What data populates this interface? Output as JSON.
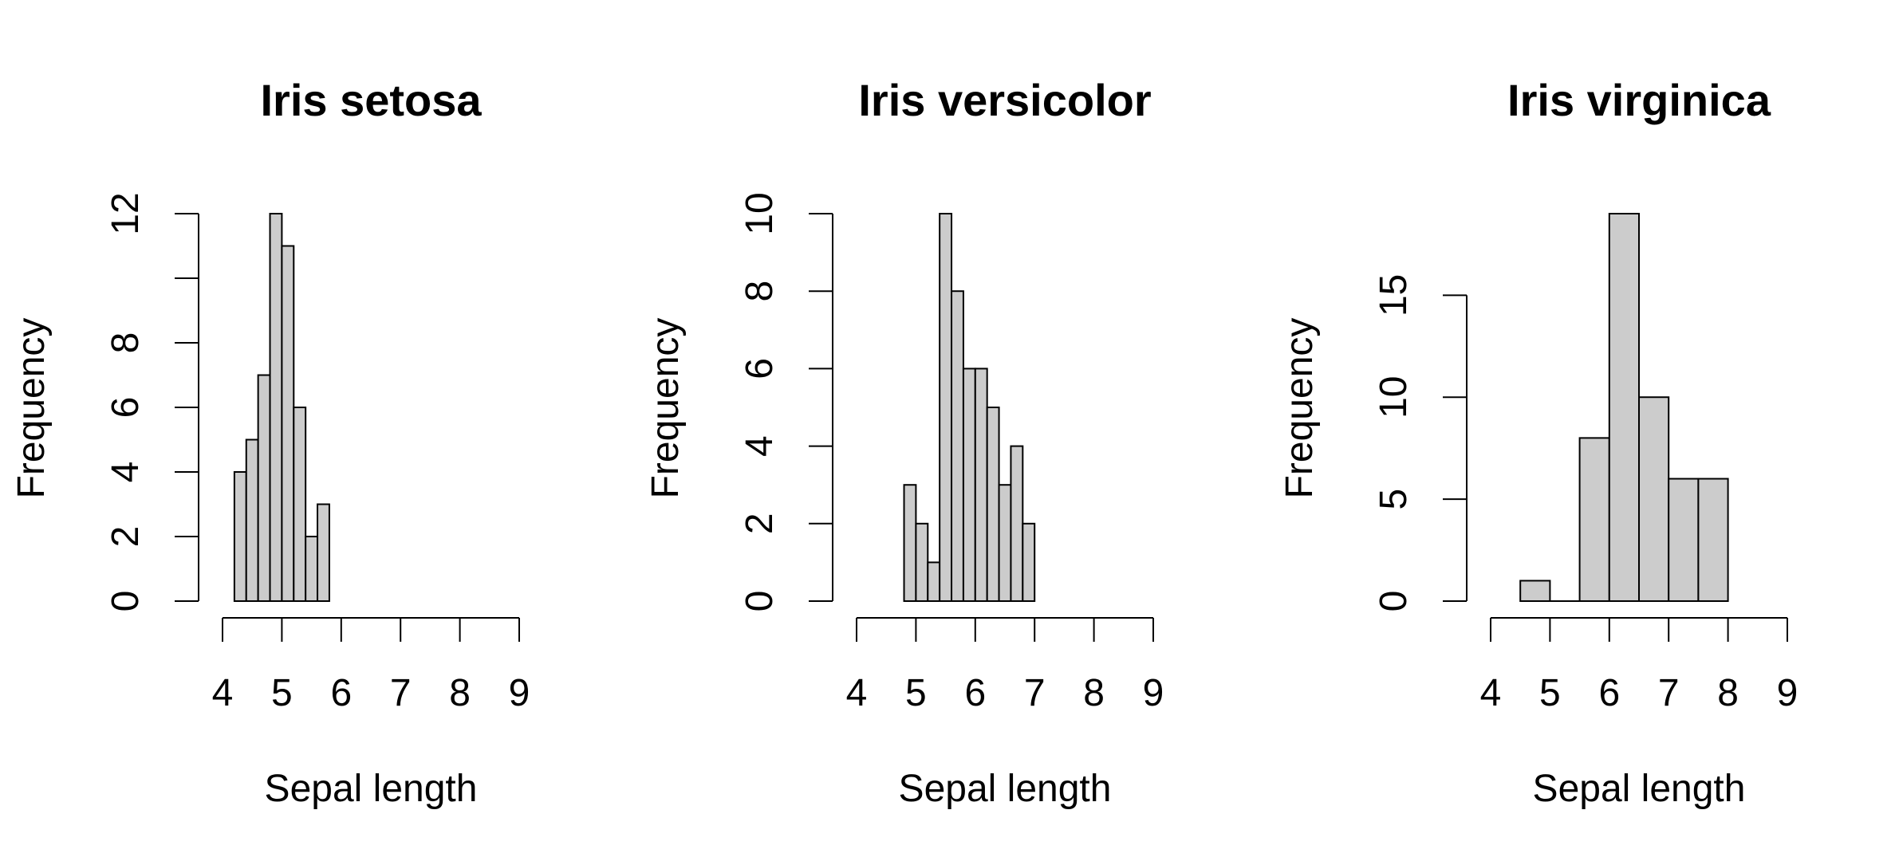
{
  "chart_data": [
    {
      "type": "bar",
      "title": "Iris setosa",
      "xlabel": "Sepal length",
      "ylabel": "Frequency",
      "bins": [
        {
          "from": 4.2,
          "to": 4.4,
          "count": 4
        },
        {
          "from": 4.4,
          "to": 4.6,
          "count": 5
        },
        {
          "from": 4.6,
          "to": 4.8,
          "count": 7
        },
        {
          "from": 4.8,
          "to": 5.0,
          "count": 12
        },
        {
          "from": 5.0,
          "to": 5.2,
          "count": 11
        },
        {
          "from": 5.2,
          "to": 5.4,
          "count": 6
        },
        {
          "from": 5.4,
          "to": 5.6,
          "count": 2
        },
        {
          "from": 5.6,
          "to": 5.8,
          "count": 3
        }
      ],
      "xlim": [
        4,
        9
      ],
      "xticks": [
        4,
        5,
        6,
        7,
        8,
        9
      ],
      "ylim": [
        0,
        12
      ],
      "yticks": [
        0,
        2,
        4,
        6,
        8,
        10,
        12
      ],
      "ytick_labels": [
        "0",
        "2",
        "4",
        "6",
        "8",
        "",
        "12"
      ],
      "bar_color": "#cccccc",
      "grid": false
    },
    {
      "type": "bar",
      "title": "Iris versicolor",
      "xlabel": "Sepal length",
      "ylabel": "Frequency",
      "bins": [
        {
          "from": 4.8,
          "to": 5.0,
          "count": 3
        },
        {
          "from": 5.0,
          "to": 5.2,
          "count": 2
        },
        {
          "from": 5.2,
          "to": 5.4,
          "count": 1
        },
        {
          "from": 5.4,
          "to": 5.6,
          "count": 10
        },
        {
          "from": 5.6,
          "to": 5.8,
          "count": 8
        },
        {
          "from": 5.8,
          "to": 6.0,
          "count": 6
        },
        {
          "from": 6.0,
          "to": 6.2,
          "count": 6
        },
        {
          "from": 6.2,
          "to": 6.4,
          "count": 5
        },
        {
          "from": 6.4,
          "to": 6.6,
          "count": 3
        },
        {
          "from": 6.6,
          "to": 6.8,
          "count": 4
        },
        {
          "from": 6.8,
          "to": 7.0,
          "count": 2
        }
      ],
      "xlim": [
        4,
        9
      ],
      "xticks": [
        4,
        5,
        6,
        7,
        8,
        9
      ],
      "ylim": [
        0,
        10
      ],
      "yticks": [
        0,
        2,
        4,
        6,
        8,
        10
      ],
      "ytick_labels": [
        "0",
        "2",
        "4",
        "6",
        "8",
        "10"
      ],
      "bar_color": "#cccccc",
      "grid": false
    },
    {
      "type": "bar",
      "title": "Iris virginica",
      "xlabel": "Sepal length",
      "ylabel": "Frequency",
      "bins": [
        {
          "from": 4.5,
          "to": 5.0,
          "count": 1
        },
        {
          "from": 5.0,
          "to": 5.5,
          "count": 0
        },
        {
          "from": 5.5,
          "to": 6.0,
          "count": 8
        },
        {
          "from": 6.0,
          "to": 6.5,
          "count": 19
        },
        {
          "from": 6.5,
          "to": 7.0,
          "count": 10
        },
        {
          "from": 7.0,
          "to": 7.5,
          "count": 6
        },
        {
          "from": 7.5,
          "to": 8.0,
          "count": 6
        }
      ],
      "xlim": [
        4,
        9
      ],
      "xticks": [
        4,
        5,
        6,
        7,
        8,
        9
      ],
      "ylim": [
        0,
        19
      ],
      "yticks": [
        0,
        5,
        10,
        15
      ],
      "ytick_labels": [
        "0",
        "5",
        "10",
        "15"
      ],
      "bar_color": "#cccccc",
      "grid": false
    }
  ]
}
